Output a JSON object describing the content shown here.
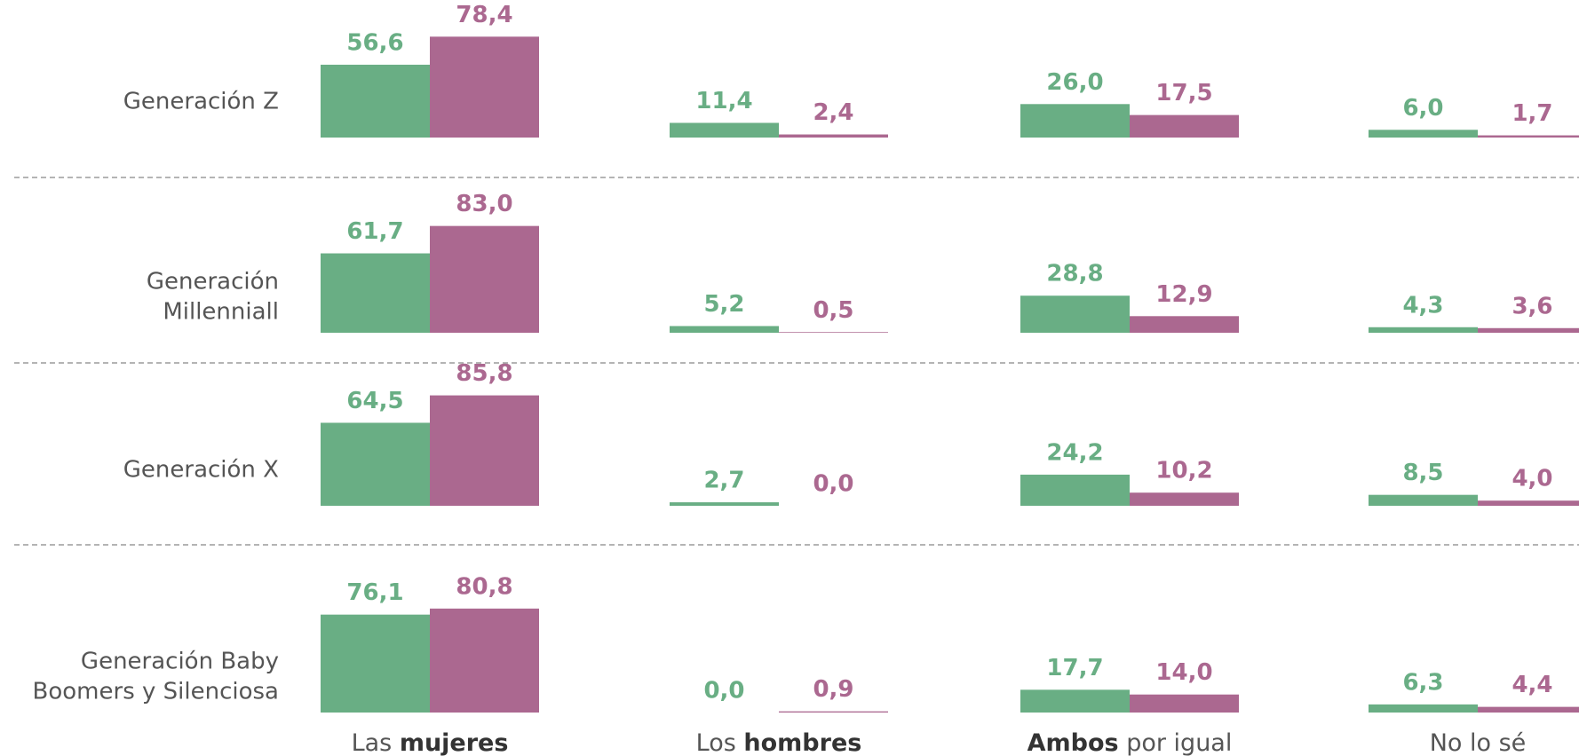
{
  "chart_data": {
    "type": "bar",
    "categories": [
      [
        "Las ",
        "mujeres"
      ],
      [
        "Los ",
        "hombres"
      ],
      [
        "Ambos",
        " por igual"
      ],
      [
        "No lo sé"
      ]
    ],
    "category_bold": [
      1,
      1,
      0,
      null
    ],
    "ylim": [
      0,
      100
    ],
    "grid": "dashed",
    "groups": [
      {
        "label": [
          "Generación Z"
        ],
        "series": [
          {
            "color": "#69ae84",
            "values": [
              56.6,
              11.4,
              26.0,
              6.0
            ],
            "value_labels": [
              "56,6",
              "11,4",
              "26,0",
              "6,0"
            ]
          },
          {
            "color": "#ab6890",
            "values": [
              78.4,
              2.4,
              17.5,
              1.7
            ],
            "value_labels": [
              "78,4",
              "2,4",
              "17,5",
              "1,7"
            ]
          }
        ]
      },
      {
        "label": [
          "Generación",
          "Millenniall"
        ],
        "series": [
          {
            "color": "#69ae84",
            "values": [
              61.7,
              5.2,
              28.8,
              4.3
            ],
            "value_labels": [
              "61,7",
              "5,2",
              "28,8",
              "4,3"
            ]
          },
          {
            "color": "#ab6890",
            "values": [
              83.0,
              0.5,
              12.9,
              3.6
            ],
            "value_labels": [
              "83,0",
              "0,5",
              "12,9",
              "3,6"
            ]
          }
        ]
      },
      {
        "label": [
          "Generación X"
        ],
        "series": [
          {
            "color": "#69ae84",
            "values": [
              64.5,
              2.7,
              24.2,
              8.5
            ],
            "value_labels": [
              "64,5",
              "2,7",
              "24,2",
              "8,5"
            ]
          },
          {
            "color": "#ab6890",
            "values": [
              85.8,
              0.0,
              10.2,
              4.0
            ],
            "value_labels": [
              "85,8",
              "0,0",
              "10,2",
              "4,0"
            ]
          }
        ]
      },
      {
        "label": [
          "Generación Baby",
          "Boomers y Silenciosa"
        ],
        "series": [
          {
            "color": "#69ae84",
            "values": [
              76.1,
              0.0,
              17.7,
              6.3
            ],
            "value_labels": [
              "76,1",
              "0,0",
              "17,7",
              "6,3"
            ]
          },
          {
            "color": "#ab6890",
            "values": [
              80.8,
              0.9,
              14.0,
              4.4
            ],
            "value_labels": [
              "80,8",
              "0,9",
              "14,0",
              "4,4"
            ]
          }
        ]
      }
    ]
  }
}
